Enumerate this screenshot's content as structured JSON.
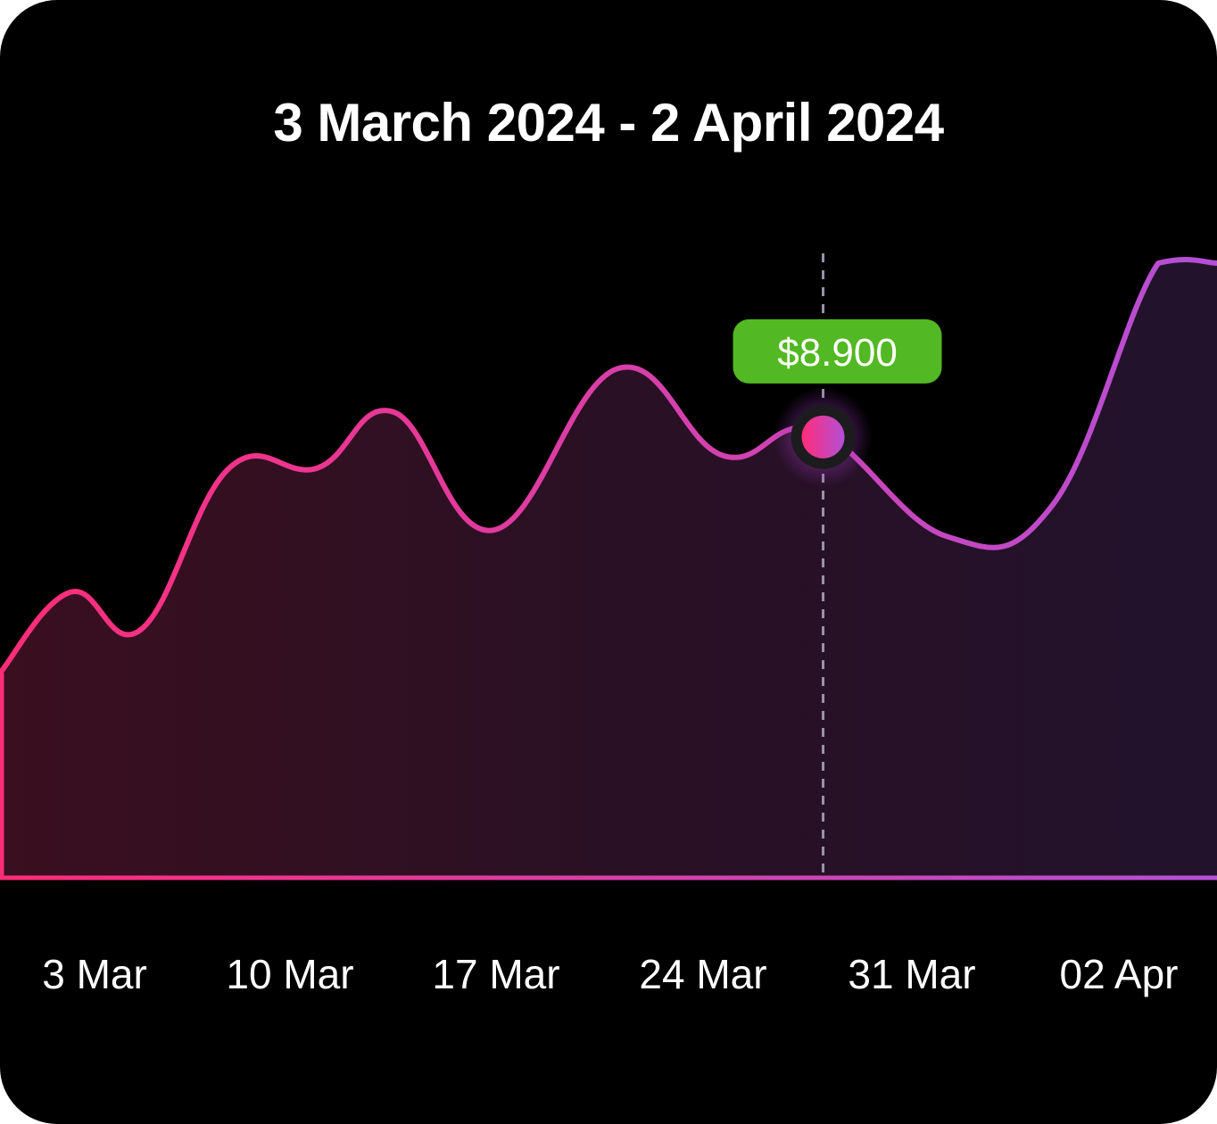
{
  "chart_data": {
    "type": "area",
    "title": "3 March 2024 - 2 April 2024",
    "xlabel": "",
    "ylabel": "",
    "grid": false,
    "x_ticks": [
      "3 Mar",
      "10 Mar",
      "17 Mar",
      "24 Mar",
      "31 Mar",
      "02 Apr"
    ],
    "ylim": [
      0,
      100
    ],
    "series": [
      {
        "points": [
          {
            "x": 0.0,
            "y": 33
          },
          {
            "x": 1.2,
            "y": 46
          },
          {
            "x": 2.4,
            "y": 40
          },
          {
            "x": 3.9,
            "y": 66
          },
          {
            "x": 5.4,
            "y": 66
          },
          {
            "x": 6.7,
            "y": 75
          },
          {
            "x": 8.4,
            "y": 56
          },
          {
            "x": 10.5,
            "y": 82
          },
          {
            "x": 12.3,
            "y": 68
          },
          {
            "x": 13.9,
            "y": 72
          },
          {
            "x": 16.1,
            "y": 55
          },
          {
            "x": 17.9,
            "y": 60
          },
          {
            "x": 19.7,
            "y": 99
          },
          {
            "x": 20.7,
            "y": 99
          }
        ]
      }
    ],
    "highlight": {
      "x": 14.0,
      "y": 71,
      "label": "$8.900"
    },
    "colors": {
      "line_start": "#ff2d78",
      "line_end": "#b44fd6",
      "tooltip_bg": "#52b823",
      "guide": "#9a92a8"
    }
  }
}
